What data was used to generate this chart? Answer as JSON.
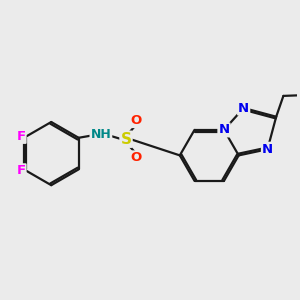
{
  "bg_color": "#ebebeb",
  "bond_color": "#1a1a1a",
  "bond_width": 1.6,
  "atom_colors": {
    "F": "#ff00ff",
    "N": "#0000ee",
    "S": "#cccc00",
    "O": "#ff2200",
    "H": "#008888",
    "C": "#1a1a1a"
  }
}
